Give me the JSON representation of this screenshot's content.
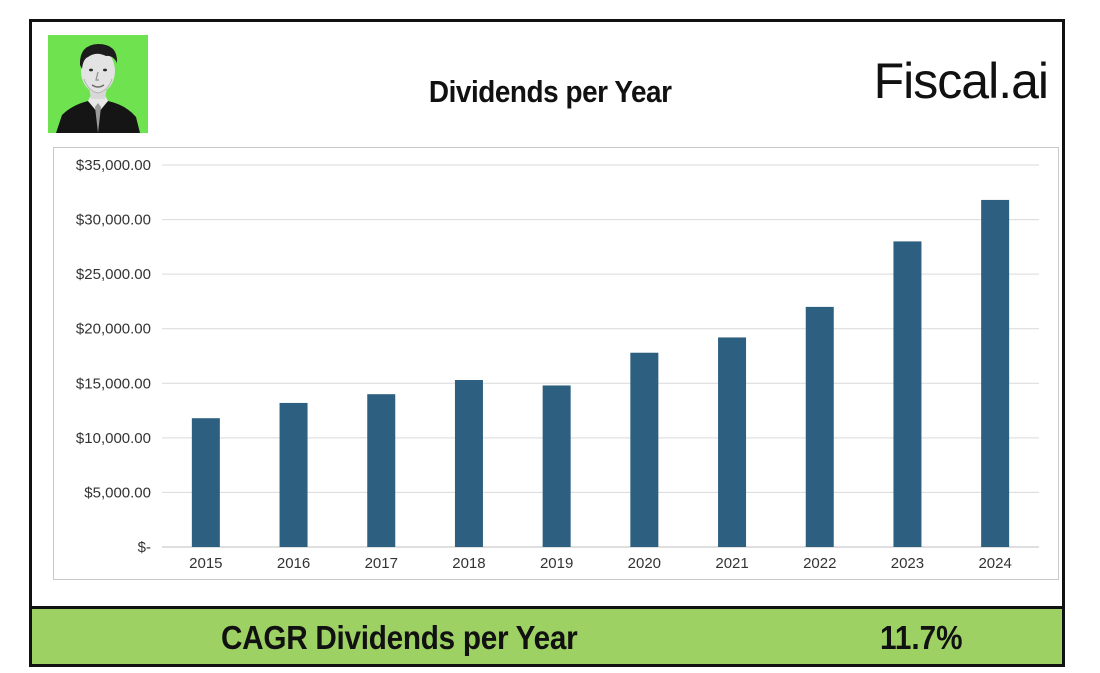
{
  "header": {
    "title": "Dividends per Year",
    "brand": "Fiscal.ai"
  },
  "summary": {
    "label": "CAGR Dividends per Year",
    "value": "11.7%"
  },
  "colors": {
    "bar": "#2d5f80",
    "summary_background": "#9dd163",
    "avatar_background": "#6ee34f"
  },
  "icons": {
    "avatar": "author-portrait"
  },
  "chart_data": {
    "type": "bar",
    "title": "Dividends per Year",
    "xlabel": "",
    "ylabel": "",
    "categories": [
      "2015",
      "2016",
      "2017",
      "2018",
      "2019",
      "2020",
      "2021",
      "2022",
      "2023",
      "2024"
    ],
    "values": [
      11800,
      13200,
      14000,
      15300,
      14800,
      17800,
      19200,
      22000,
      28000,
      31800
    ],
    "ylim": [
      0,
      35000
    ],
    "yticks": [
      0,
      5000,
      10000,
      15000,
      20000,
      25000,
      30000,
      35000
    ],
    "ytick_labels": [
      "$-",
      "$5,000.00",
      "$10,000.00",
      "$15,000.00",
      "$20,000.00",
      "$25,000.00",
      "$30,000.00",
      "$35,000.00"
    ],
    "grid": true,
    "legend": "none"
  }
}
